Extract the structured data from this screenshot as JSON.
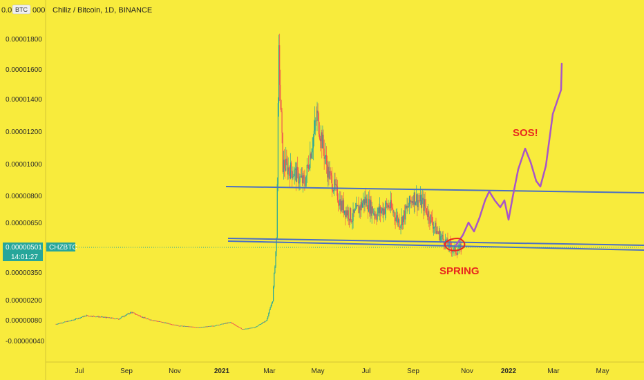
{
  "header": {
    "symbol_title": "Chiliz / Bitcoin, 1D, BINANCE",
    "axis_unit_badge": "BTC",
    "top_label": "0.0",
    "top_label_tail": "000"
  },
  "price_tag": {
    "value": "0.00000501",
    "countdown": "14:01:27",
    "symbol": "CHZBTC",
    "color": "#26a69a"
  },
  "annotations": {
    "spring": {
      "text": "SPRING",
      "color": "#e8281e"
    },
    "sos": {
      "text": "SOS!",
      "color": "#e8281e"
    }
  },
  "colors": {
    "background": "#f8eb3c",
    "up_candle": "#26a69a",
    "down_candle": "#ef5350",
    "trendline": "#4a6fc3",
    "projection": "#a855c8",
    "axis_text": "#2a2a2a"
  },
  "chart_data": {
    "type": "candlestick",
    "title": "Chiliz / Bitcoin, 1D, BINANCE",
    "y_axis": {
      "scale": "log",
      "tick_labels": [
        "0.00001800",
        "0.00001600",
        "0.00001400",
        "0.00001200",
        "0.00001000",
        "0.00000800",
        "0.00000650",
        "0.00000350",
        "0.00000200",
        "0.00000080",
        "-0.00000040"
      ],
      "ylim": [
        -4e-07,
        1.9e-05
      ]
    },
    "x_axis": {
      "tick_labels": [
        "Jul",
        "Sep",
        "Nov",
        "2021",
        "Mar",
        "May",
        "Jul",
        "Sep",
        "Nov",
        "2022",
        "Mar",
        "May"
      ],
      "year_labels": [
        "2021",
        "2022"
      ]
    },
    "series": [
      {
        "name": "CHZBTC",
        "points": [
          [
            "2020-06-01",
            6e-07
          ],
          [
            "2020-06-20",
            8e-07
          ],
          [
            "2020-07-10",
            1.1e-06
          ],
          [
            "2020-08-01",
            1e-06
          ],
          [
            "2020-08-20",
            9e-07
          ],
          [
            "2020-09-05",
            1.3e-06
          ],
          [
            "2020-09-25",
            9e-07
          ],
          [
            "2020-10-15",
            7e-07
          ],
          [
            "2020-11-05",
            5e-07
          ],
          [
            "2020-12-01",
            4e-07
          ],
          [
            "2020-12-20",
            5e-07
          ],
          [
            "2021-01-10",
            7e-07
          ],
          [
            "2021-01-25",
            3e-07
          ],
          [
            "2021-02-10",
            4e-07
          ],
          [
            "2021-02-25",
            8e-07
          ],
          [
            "2021-03-05",
            2e-06
          ],
          [
            "2021-03-10",
            5.5e-06
          ],
          [
            "2021-03-13",
            1.68e-05
          ],
          [
            "2021-03-18",
            1e-05
          ],
          [
            "2021-04-01",
            9.5e-06
          ],
          [
            "2021-04-15",
            8.8e-06
          ],
          [
            "2021-05-01",
            1.3e-05
          ],
          [
            "2021-05-15",
            9.5e-06
          ],
          [
            "2021-06-01",
            7.5e-06
          ],
          [
            "2021-06-15",
            6.8e-06
          ],
          [
            "2021-07-01",
            7.8e-06
          ],
          [
            "2021-07-15",
            7e-06
          ],
          [
            "2021-08-01",
            7.5e-06
          ],
          [
            "2021-08-15",
            6.5e-06
          ],
          [
            "2021-09-01",
            8e-06
          ],
          [
            "2021-09-15",
            7.5e-06
          ],
          [
            "2021-10-01",
            6e-06
          ],
          [
            "2021-10-15",
            5.2e-06
          ],
          [
            "2021-10-25",
            4.8e-06
          ],
          [
            "2021-11-01",
            5e-06
          ]
        ]
      }
    ],
    "trendlines": [
      {
        "name": "upper",
        "from": [
          "2021-01-01",
          8.6e-06
        ],
        "to": [
          "2022-06-30",
          8.2e-06
        ]
      },
      {
        "name": "lower-1",
        "from": [
          "2021-01-01",
          5.3e-06
        ],
        "to": [
          "2022-06-30",
          4.8e-06
        ]
      },
      {
        "name": "lower-2",
        "from": [
          "2021-01-01",
          5.2e-06
        ],
        "to": [
          "2022-06-30",
          4.6e-06
        ]
      }
    ],
    "projection": {
      "points": [
        [
          "2021-11-01",
          5e-06
        ],
        [
          "2021-11-05",
          6e-06
        ],
        [
          "2021-11-15",
          5.2e-06
        ],
        [
          "2021-12-01",
          8e-06
        ],
        [
          "2021-12-10",
          6.8e-06
        ],
        [
          "2021-12-20",
          7.6e-06
        ],
        [
          "2021-12-28",
          6.2e-06
        ],
        [
          "2022-01-10",
          9.5e-06
        ],
        [
          "2022-01-20",
          1.1e-05
        ],
        [
          "2022-02-05",
          8.5e-06
        ],
        [
          "2022-02-20",
          1.4e-05
        ],
        [
          "2022-03-08",
          1.65e-05
        ]
      ]
    }
  }
}
